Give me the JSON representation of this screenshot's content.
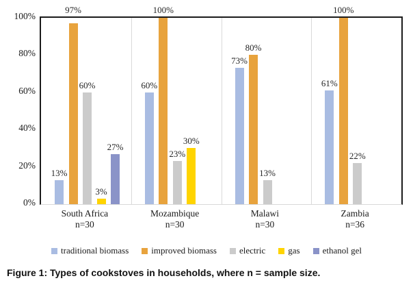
{
  "figure_caption": "Figure 1: Types of cookstoves in households, where n = sample size.",
  "chart_data": {
    "type": "bar",
    "title": "",
    "categories": [
      "South Africa",
      "Mozambique",
      "Malawi",
      "Zambia"
    ],
    "category_sublabels": [
      "n=30",
      "n=30",
      "n=30",
      "n=36"
    ],
    "series": [
      {
        "name": "traditional biomass",
        "color": "#A9BCE2",
        "values": [
          13,
          60,
          73,
          61
        ]
      },
      {
        "name": "improved biomass",
        "color": "#E8A33D",
        "values": [
          97,
          100,
          80,
          100
        ]
      },
      {
        "name": "electric",
        "color": "#CBCBCB",
        "values": [
          60,
          23,
          13,
          22
        ]
      },
      {
        "name": "gas",
        "color": "#FFD400",
        "values": [
          3,
          30,
          null,
          null
        ]
      },
      {
        "name": "ethanol gel",
        "color": "#8A93C8",
        "values": [
          27,
          null,
          null,
          null
        ]
      }
    ],
    "y_axis": {
      "tick_labels": [
        "0%",
        "20%",
        "40%",
        "60%",
        "80%",
        "100%"
      ],
      "ylim": [
        0,
        100
      ]
    },
    "data_label_suffix": "%",
    "legend_position": "bottom",
    "grid": false,
    "plot_border_color": "#1a1a1a",
    "separator_color": "#D9D9D9"
  }
}
